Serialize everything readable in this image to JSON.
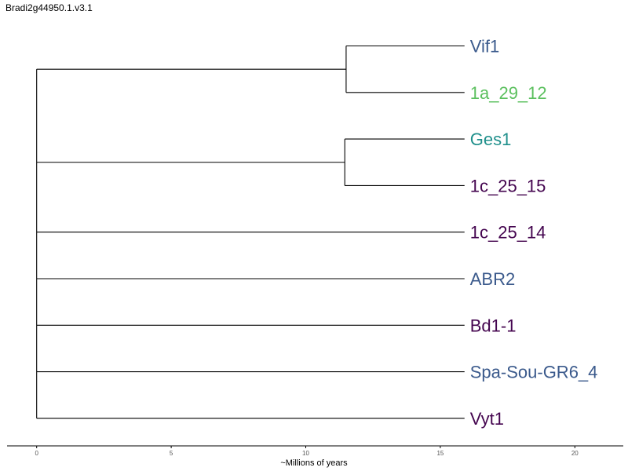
{
  "title": "Bradi2g44950.1.v3.1",
  "colors": {
    "blue": "#3b5a8c",
    "green": "#5cc05f",
    "teal": "#20908c",
    "purple": "#44054f",
    "line": "#000000"
  },
  "chart_data": {
    "type": "dendrogram",
    "xlabel": "~Millions of years",
    "xlim": [
      -1.1,
      21.8
    ],
    "ticks": [
      0,
      5,
      10,
      15,
      20
    ],
    "grid": false,
    "leaves": [
      {
        "name": "Vif1",
        "color": "#3b5a8c"
      },
      {
        "name": "1a_29_12",
        "color": "#5cc05f"
      },
      {
        "name": "Ges1",
        "color": "#20908c"
      },
      {
        "name": "1c_25_15",
        "color": "#44054f"
      },
      {
        "name": "1c_25_14",
        "color": "#44054f"
      },
      {
        "name": "ABR2",
        "color": "#3b5a8c"
      },
      {
        "name": "Bd1-1",
        "color": "#44054f"
      },
      {
        "name": "Spa-Sou-GR6_4",
        "color": "#3b5a8c"
      },
      {
        "name": "Vyt1",
        "color": "#44054f"
      }
    ],
    "tree": {
      "height": 0,
      "children": [
        {
          "height": 11.5,
          "children": [
            {
              "leaf": 0
            },
            {
              "leaf": 1
            }
          ]
        },
        {
          "height": 11.45,
          "children": [
            {
              "leaf": 2
            },
            {
              "leaf": 3
            }
          ]
        },
        {
          "leaf": 4
        },
        {
          "leaf": 5
        },
        {
          "leaf": 6
        },
        {
          "leaf": 7
        },
        {
          "leaf": 8
        }
      ]
    },
    "leaf_position": 15.9
  }
}
